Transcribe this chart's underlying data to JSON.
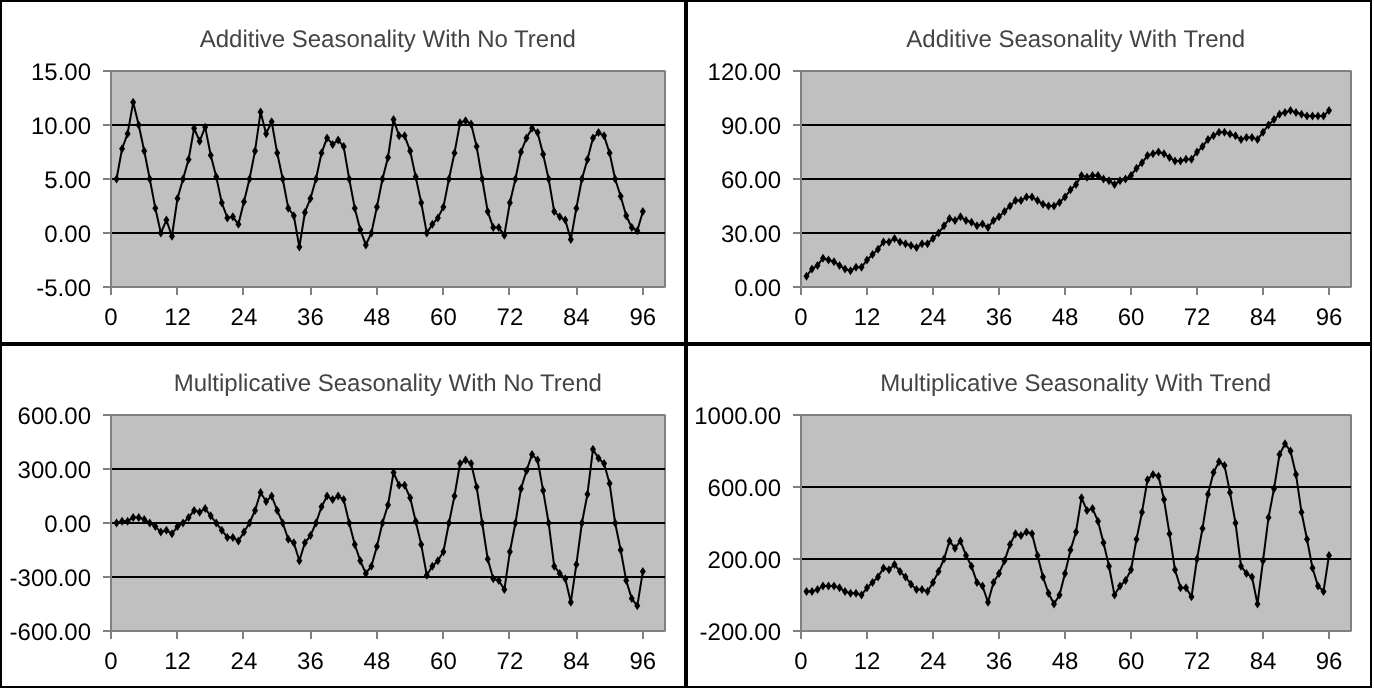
{
  "chart_data": [
    {
      "type": "line",
      "title": "Additive Seasonality With No Trend",
      "x": [
        1,
        2,
        3,
        4,
        5,
        6,
        7,
        8,
        9,
        10,
        11,
        12,
        13,
        14,
        15,
        16,
        17,
        18,
        19,
        20,
        21,
        22,
        23,
        24,
        25,
        26,
        27,
        28,
        29,
        30,
        31,
        32,
        33,
        34,
        35,
        36,
        37,
        38,
        39,
        40,
        41,
        42,
        43,
        44,
        45,
        46,
        47,
        48,
        49,
        50,
        51,
        52,
        53,
        54,
        55,
        56,
        57,
        58,
        59,
        60,
        61,
        62,
        63,
        64,
        65,
        66,
        67,
        68,
        69,
        70,
        71,
        72,
        73,
        74,
        75,
        76,
        77,
        78,
        79,
        80,
        81,
        82,
        83,
        84,
        85,
        86,
        87,
        88,
        89,
        90,
        91,
        92,
        93,
        94,
        95,
        96
      ],
      "series": [
        {
          "color": "#000000",
          "values": [
            5,
            7.8,
            9.2,
            12.1,
            10,
            7.6,
            5,
            2.3,
            0,
            1.2,
            -0.3,
            3.2,
            5,
            6.8,
            9.7,
            8.5,
            9.8,
            7.2,
            5.2,
            2.8,
            1.4,
            1.5,
            0.8,
            2.9,
            5,
            7.6,
            11.2,
            9.2,
            10.3,
            7.4,
            5,
            2.3,
            1.6,
            -1.3,
            1.9,
            3.2,
            5,
            7.4,
            8.8,
            8.2,
            8.6,
            8,
            5,
            2.3,
            0.3,
            -1.1,
            0,
            2.4,
            5,
            7,
            10.5,
            9,
            9,
            7.6,
            5.2,
            2.8,
            0,
            0.8,
            1.4,
            2.4,
            5,
            7.4,
            10.2,
            10.4,
            10.1,
            8,
            5,
            2,
            0.5,
            0.5,
            -0.2,
            2.8,
            5,
            7.5,
            8.8,
            9.7,
            9.3,
            7.3,
            5,
            2,
            1.5,
            1.2,
            -0.6,
            2.3,
            5,
            6.8,
            8.8,
            9.3,
            9,
            7.4,
            5,
            3.4,
            1.6,
            0.5,
            0.2,
            2
          ]
        }
      ],
      "xlim": [
        0,
        100
      ],
      "xticks": [
        0,
        12,
        24,
        36,
        48,
        60,
        72,
        84,
        96
      ],
      "ylim": [
        -5,
        15
      ],
      "yticks": [
        {
          "value": -5,
          "label": "-5.00"
        },
        {
          "value": 0,
          "label": "0.00"
        },
        {
          "value": 5,
          "label": "5.00"
        },
        {
          "value": 10,
          "label": "10.00"
        },
        {
          "value": 15,
          "label": "15.00"
        }
      ],
      "grid": "y",
      "marker": "diamond",
      "line_style": "solid"
    },
    {
      "type": "line",
      "title": "Additive Seasonality With Trend",
      "x": [
        1,
        2,
        3,
        4,
        5,
        6,
        7,
        8,
        9,
        10,
        11,
        12,
        13,
        14,
        15,
        16,
        17,
        18,
        19,
        20,
        21,
        22,
        23,
        24,
        25,
        26,
        27,
        28,
        29,
        30,
        31,
        32,
        33,
        34,
        35,
        36,
        37,
        38,
        39,
        40,
        41,
        42,
        43,
        44,
        45,
        46,
        47,
        48,
        49,
        50,
        51,
        52,
        53,
        54,
        55,
        56,
        57,
        58,
        59,
        60,
        61,
        62,
        63,
        64,
        65,
        66,
        67,
        68,
        69,
        70,
        71,
        72,
        73,
        74,
        75,
        76,
        77,
        78,
        79,
        80,
        81,
        82,
        83,
        84,
        85,
        86,
        87,
        88,
        89,
        90,
        91,
        92,
        93,
        94,
        95,
        96
      ],
      "series": [
        {
          "color": "#000000",
          "values": [
            6,
            10,
            12,
            16,
            15,
            14,
            12,
            10,
            9,
            11,
            11,
            15,
            18,
            21,
            25,
            25,
            27,
            25,
            24,
            23,
            22,
            24,
            24,
            27,
            30,
            34,
            38,
            37,
            39,
            37,
            36,
            34,
            35,
            33,
            37,
            39,
            42,
            45,
            48,
            48,
            50,
            50,
            48,
            46,
            45,
            45,
            47,
            50,
            54,
            57,
            62,
            61,
            62,
            62,
            60,
            59,
            57,
            59,
            60,
            62,
            66,
            69,
            73,
            74,
            75,
            74,
            72,
            70,
            70,
            71,
            71,
            75,
            78,
            82,
            84,
            86,
            86,
            85,
            84,
            82,
            83,
            83,
            82,
            86,
            90,
            93,
            96,
            97,
            98,
            97,
            96,
            95,
            95,
            95,
            95,
            98
          ]
        }
      ],
      "xlim": [
        0,
        100
      ],
      "xticks": [
        0,
        12,
        24,
        36,
        48,
        60,
        72,
        84,
        96
      ],
      "ylim": [
        0,
        120
      ],
      "yticks": [
        {
          "value": 0,
          "label": "0.00"
        },
        {
          "value": 30,
          "label": "30.00"
        },
        {
          "value": 60,
          "label": "60.00"
        },
        {
          "value": 90,
          "label": "90.00"
        },
        {
          "value": 120,
          "label": "120.00"
        }
      ],
      "grid": "y",
      "marker": "diamond",
      "line_style": "solid"
    },
    {
      "type": "line",
      "title": "Multiplicative Seasonality With No Trend",
      "x": [
        1,
        2,
        3,
        4,
        5,
        6,
        7,
        8,
        9,
        10,
        11,
        12,
        13,
        14,
        15,
        16,
        17,
        18,
        19,
        20,
        21,
        22,
        23,
        24,
        25,
        26,
        27,
        28,
        29,
        30,
        31,
        32,
        33,
        34,
        35,
        36,
        37,
        38,
        39,
        40,
        41,
        42,
        43,
        44,
        45,
        46,
        47,
        48,
        49,
        50,
        51,
        52,
        53,
        54,
        55,
        56,
        57,
        58,
        59,
        60,
        61,
        62,
        63,
        64,
        65,
        66,
        67,
        68,
        69,
        70,
        71,
        72,
        73,
        74,
        75,
        76,
        77,
        78,
        79,
        80,
        81,
        82,
        83,
        84,
        85,
        86,
        87,
        88,
        89,
        90,
        91,
        92,
        93,
        94,
        95,
        96
      ],
      "series": [
        {
          "color": "#000000",
          "values": [
            0,
            10,
            10,
            30,
            30,
            20,
            0,
            -20,
            -50,
            -40,
            -60,
            -20,
            0,
            30,
            70,
            60,
            80,
            40,
            0,
            -40,
            -80,
            -80,
            -100,
            -50,
            0,
            70,
            170,
            120,
            150,
            70,
            0,
            -90,
            -110,
            -210,
            -110,
            -70,
            0,
            90,
            150,
            130,
            150,
            130,
            0,
            -120,
            -210,
            -280,
            -240,
            -130,
            0,
            100,
            280,
            210,
            210,
            140,
            10,
            -120,
            -290,
            -240,
            -210,
            -160,
            0,
            150,
            330,
            350,
            330,
            200,
            0,
            -200,
            -310,
            -320,
            -370,
            -160,
            0,
            190,
            290,
            380,
            350,
            180,
            0,
            -240,
            -280,
            -310,
            -440,
            -230,
            0,
            160,
            410,
            360,
            330,
            220,
            0,
            -150,
            -320,
            -420,
            -460,
            -270
          ]
        }
      ],
      "xlim": [
        0,
        100
      ],
      "xticks": [
        0,
        12,
        24,
        36,
        48,
        60,
        72,
        84,
        96
      ],
      "ylim": [
        -600,
        600
      ],
      "yticks": [
        {
          "value": -600,
          "label": "-600.00"
        },
        {
          "value": -300,
          "label": "-300.00"
        },
        {
          "value": 0,
          "label": "0.00"
        },
        {
          "value": 300,
          "label": "300.00"
        },
        {
          "value": 600,
          "label": "600.00"
        }
      ],
      "grid": "y",
      "marker": "diamond",
      "line_style": "solid"
    },
    {
      "type": "line",
      "title": "Multiplicative Seasonality With Trend",
      "x": [
        1,
        2,
        3,
        4,
        5,
        6,
        7,
        8,
        9,
        10,
        11,
        12,
        13,
        14,
        15,
        16,
        17,
        18,
        19,
        20,
        21,
        22,
        23,
        24,
        25,
        26,
        27,
        28,
        29,
        30,
        31,
        32,
        33,
        34,
        35,
        36,
        37,
        38,
        39,
        40,
        41,
        42,
        43,
        44,
        45,
        46,
        47,
        48,
        49,
        50,
        51,
        52,
        53,
        54,
        55,
        56,
        57,
        58,
        59,
        60,
        61,
        62,
        63,
        64,
        65,
        66,
        67,
        68,
        69,
        70,
        71,
        72,
        73,
        74,
        75,
        76,
        77,
        78,
        79,
        80,
        81,
        82,
        83,
        84,
        85,
        86,
        87,
        88,
        89,
        90,
        91,
        92,
        93,
        94,
        95,
        96
      ],
      "series": [
        {
          "color": "#000000",
          "values": [
            20,
            20,
            30,
            50,
            50,
            50,
            40,
            20,
            10,
            10,
            0,
            40,
            70,
            100,
            150,
            140,
            170,
            130,
            100,
            60,
            30,
            30,
            20,
            70,
            130,
            200,
            300,
            260,
            300,
            220,
            160,
            70,
            50,
            -40,
            70,
            120,
            190,
            280,
            340,
            330,
            350,
            340,
            220,
            100,
            10,
            -50,
            0,
            120,
            250,
            350,
            540,
            470,
            480,
            410,
            290,
            160,
            0,
            50,
            80,
            140,
            310,
            460,
            640,
            670,
            660,
            530,
            340,
            140,
            40,
            40,
            -10,
            200,
            370,
            560,
            680,
            740,
            720,
            570,
            400,
            160,
            120,
            100,
            -50,
            190,
            430,
            590,
            780,
            840,
            800,
            670,
            460,
            310,
            150,
            50,
            20,
            220
          ]
        }
      ],
      "xlim": [
        0,
        100
      ],
      "xticks": [
        0,
        12,
        24,
        36,
        48,
        60,
        72,
        84,
        96
      ],
      "ylim": [
        -200,
        1000
      ],
      "yticks": [
        {
          "value": -200,
          "label": "-200.00"
        },
        {
          "value": 200,
          "label": "200.00"
        },
        {
          "value": 600,
          "label": "600.00"
        },
        {
          "value": 1000,
          "label": "1000.00"
        }
      ],
      "grid": "y",
      "marker": "diamond",
      "line_style": "solid"
    }
  ]
}
